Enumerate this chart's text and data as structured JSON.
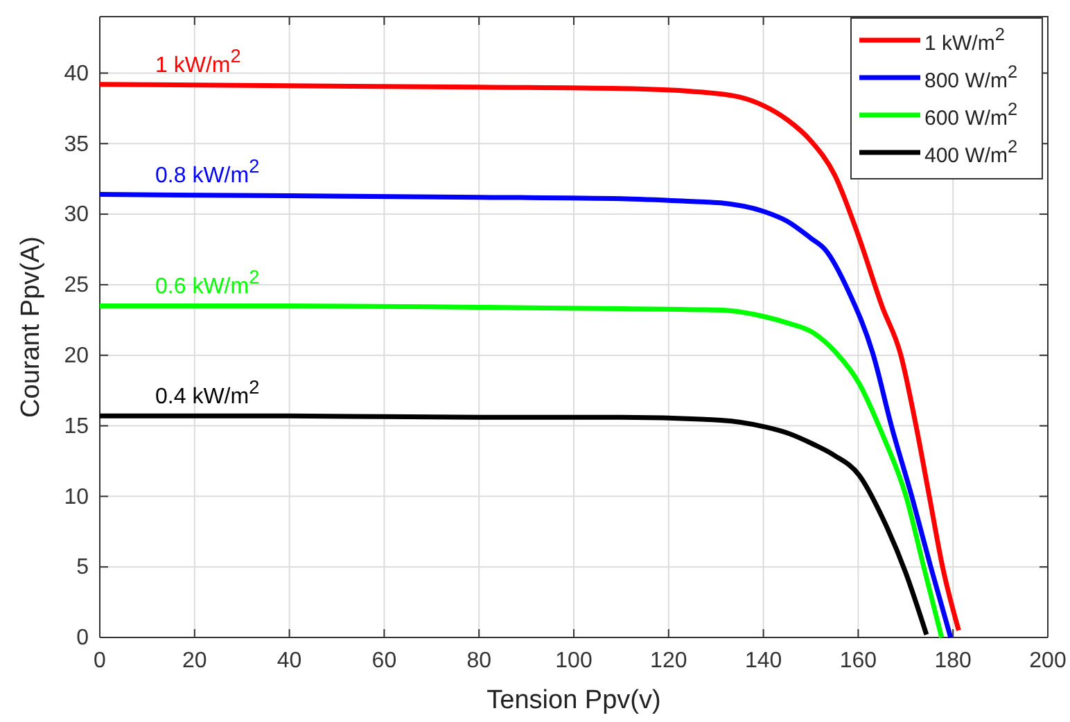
{
  "chart_data": {
    "type": "line",
    "xlabel": "Tension Ppv(v)",
    "ylabel": "Courant Ppv(A)",
    "xlim": [
      0,
      200
    ],
    "ylim": [
      0,
      44
    ],
    "xticks": [
      0,
      20,
      40,
      60,
      80,
      100,
      120,
      140,
      160,
      180,
      200
    ],
    "yticks": [
      0,
      5,
      10,
      15,
      20,
      25,
      30,
      35,
      40
    ],
    "grid": true,
    "legend": "top right",
    "line_style": "solid",
    "marker": "none",
    "series": [
      {
        "name": "1 kW/m$^{2}$",
        "color": "#ff0000",
        "x": [
          0,
          40,
          80,
          110,
          125,
          135,
          140,
          145,
          150,
          155,
          160,
          165,
          169,
          172.2,
          175,
          177.8,
          181.2
        ],
        "values": [
          39.2,
          39.1,
          39.0,
          38.9,
          38.7,
          38.3,
          37.7,
          36.7,
          35.2,
          32.8,
          28.5,
          23.5,
          20,
          15,
          10,
          5,
          0.5
        ]
      },
      {
        "name": "800 W/m$^{2}$",
        "color": "#0000ff",
        "x": [
          0,
          40,
          80,
          110,
          125,
          131,
          140,
          145,
          150,
          153,
          158,
          163.2,
          167,
          171.3,
          175.3,
          179.5
        ],
        "values": [
          31.4,
          31.3,
          31.2,
          31.1,
          30.9,
          30.8,
          30.2,
          29.5,
          28.3,
          27.5,
          24.5,
          20,
          15,
          10,
          5,
          0
        ]
      },
      {
        "name": "600 W/m$^{2}$",
        "color": "#00ff00",
        "x": [
          0,
          40,
          80,
          110,
          131,
          140.7,
          145,
          150.5,
          155,
          160.2,
          165.1,
          170,
          173.9,
          177.6
        ],
        "values": [
          23.5,
          23.5,
          23.4,
          23.3,
          23.2,
          22.7,
          22.3,
          21.6,
          20.3,
          18,
          14.4,
          10.1,
          4.9,
          0
        ]
      },
      {
        "name": "400 W/m$^{2}$",
        "color": "#000000",
        "x": [
          0,
          40,
          80,
          110,
          131,
          140.7,
          145,
          150.5,
          155,
          160.2,
          165.1,
          170,
          174.4
        ],
        "values": [
          15.7,
          15.7,
          15.6,
          15.6,
          15.4,
          14.9,
          14.5,
          13.7,
          12.9,
          11.5,
          8.5,
          4.6,
          0.2
        ]
      }
    ],
    "annotations": [
      "1 kW/m$^{2}$",
      "0.8 kW/m$^{2}$",
      "0.6 kW/m$^{2}$",
      "0.4 kW/m$^{2}$"
    ]
  }
}
